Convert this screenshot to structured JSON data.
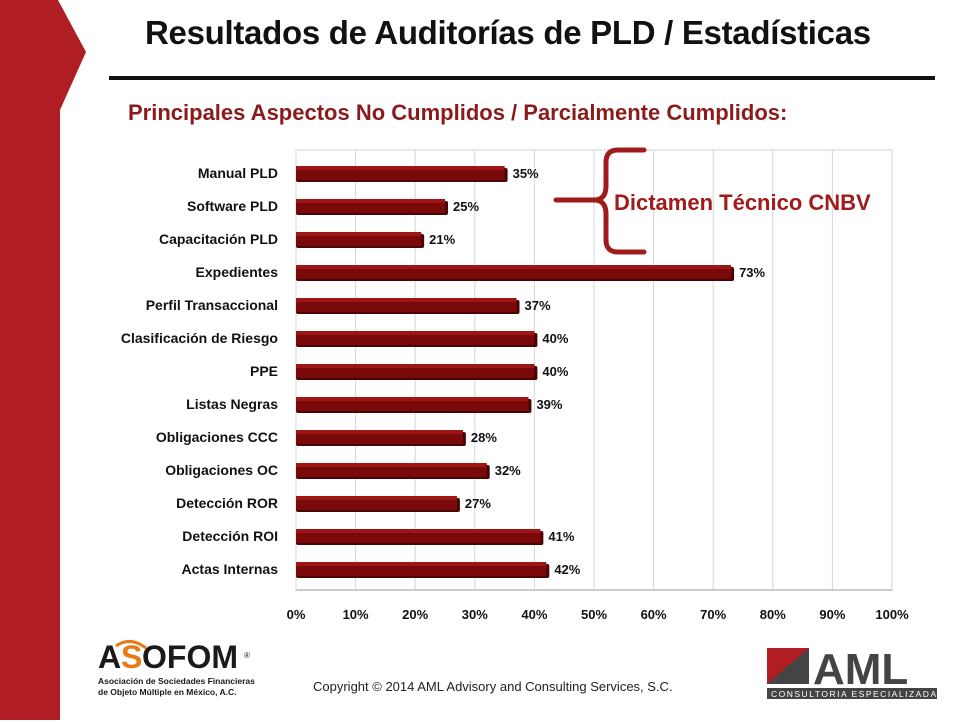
{
  "slide": {
    "title": "Resultados de Auditorías de PLD / Estadísticas",
    "subtitle": "Principales Aspectos No Cumplidos / Parcialmente Cumplidos:",
    "copyright": "Copyright © 2014 AML Advisory and Consulting Services, S.C."
  },
  "annotation": {
    "label": "Dictamen Técnico CNBV",
    "color": "#a01c1c"
  },
  "logos": {
    "left": {
      "name_pre": "A",
      "name_s": "S",
      "name_post": "OFOM",
      "registered": "®",
      "line1": "Asociación de Sociedades Financieras",
      "line2": "de Objeto Múltiple en México, A.C."
    },
    "right": {
      "name": "AML",
      "tagline": "CONSULTORIA ESPECIALIZADA"
    }
  },
  "colors": {
    "bar": "#7a0a0a",
    "bar_top": "#9e1515",
    "accent": "#8b1a1a",
    "side_band": "#b01e23"
  },
  "chart_data": {
    "type": "bar",
    "orientation": "horizontal",
    "categories": [
      "Manual PLD",
      "Software PLD",
      "Capacitación PLD",
      "Expedientes",
      "Perfil Transaccional",
      "Clasificación de Riesgo",
      "PPE",
      "Listas Negras",
      "Obligaciones CCC",
      "Obligaciones OC",
      "Detección ROR",
      "Detección ROI",
      "Actas Internas"
    ],
    "values": [
      35,
      25,
      21,
      73,
      37,
      40,
      40,
      39,
      28,
      32,
      27,
      41,
      42
    ],
    "data_labels": [
      "35%",
      "25%",
      "21%",
      "73%",
      "37%",
      "40%",
      "40%",
      "39%",
      "28%",
      "32%",
      "27%",
      "41%",
      "42%"
    ],
    "xlim": [
      0,
      100
    ],
    "ticks": [
      "0%",
      "10%",
      "20%",
      "30%",
      "40%",
      "50%",
      "60%",
      "70%",
      "80%",
      "90%",
      "100%"
    ],
    "grid": true,
    "legend": "none"
  }
}
